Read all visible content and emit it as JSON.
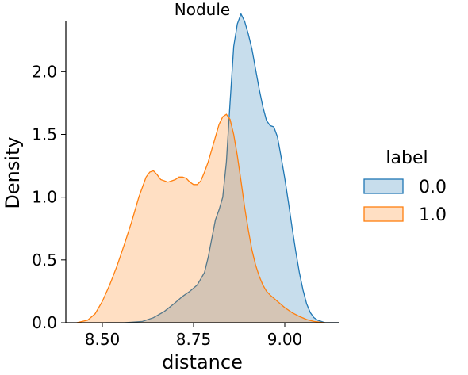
{
  "chart_data": {
    "type": "area",
    "title": "Nodule",
    "xlabel": "distance",
    "ylabel": "Density",
    "xlim": [
      8.4,
      9.15
    ],
    "ylim": [
      0,
      2.4
    ],
    "xticks": [
      {
        "value": 8.5,
        "label": "8.50"
      },
      {
        "value": 8.75,
        "label": "8.75"
      },
      {
        "value": 9.0,
        "label": "9.00"
      }
    ],
    "yticks": [
      {
        "value": 0.0,
        "label": "0.0"
      },
      {
        "value": 0.5,
        "label": "0.5"
      },
      {
        "value": 1.0,
        "label": "1.0"
      },
      {
        "value": 1.5,
        "label": "1.5"
      },
      {
        "value": 2.0,
        "label": "2.0"
      }
    ],
    "grid": false,
    "legend": {
      "title": "label",
      "placement": "right"
    },
    "series": [
      {
        "name": "0.0",
        "stroke": "#1f77b4",
        "fill": "#1f77b4",
        "x": [
          8.51,
          8.56,
          8.61,
          8.64,
          8.67,
          8.7,
          8.72,
          8.74,
          8.76,
          8.78,
          8.79,
          8.8,
          8.81,
          8.82,
          8.83,
          8.84,
          8.85,
          8.86,
          8.87,
          8.88,
          8.89,
          8.9,
          8.91,
          8.92,
          8.93,
          8.94,
          8.95,
          8.96,
          8.97,
          8.98,
          8.99,
          9.0,
          9.01,
          9.02,
          9.03,
          9.04,
          9.05,
          9.06,
          9.07,
          9.08,
          9.09,
          9.1,
          9.11,
          9.12,
          9.13,
          9.15
        ],
        "y": [
          0.0,
          0.0,
          0.01,
          0.04,
          0.09,
          0.16,
          0.21,
          0.25,
          0.3,
          0.4,
          0.52,
          0.67,
          0.82,
          0.9,
          1.0,
          1.28,
          1.75,
          2.2,
          2.38,
          2.46,
          2.4,
          2.3,
          2.18,
          2.02,
          1.86,
          1.72,
          1.61,
          1.57,
          1.56,
          1.48,
          1.32,
          1.15,
          0.96,
          0.76,
          0.57,
          0.4,
          0.26,
          0.15,
          0.08,
          0.04,
          0.02,
          0.01,
          0.0,
          0.0,
          0.0,
          0.0
        ]
      },
      {
        "name": "1.0",
        "stroke": "#ff7f0e",
        "fill": "#ff7f0e",
        "x": [
          8.43,
          8.46,
          8.48,
          8.5,
          8.52,
          8.54,
          8.56,
          8.58,
          8.6,
          8.61,
          8.62,
          8.63,
          8.64,
          8.65,
          8.66,
          8.68,
          8.7,
          8.71,
          8.72,
          8.73,
          8.74,
          8.75,
          8.76,
          8.77,
          8.78,
          8.79,
          8.8,
          8.81,
          8.82,
          8.83,
          8.84,
          8.85,
          8.86,
          8.87,
          8.88,
          8.89,
          8.9,
          8.91,
          8.92,
          8.93,
          8.94,
          8.95,
          8.96,
          8.98,
          9.0,
          9.02,
          9.04,
          9.06,
          9.08,
          9.11
        ],
        "y": [
          0.0,
          0.02,
          0.07,
          0.17,
          0.3,
          0.45,
          0.62,
          0.8,
          1.0,
          1.08,
          1.16,
          1.2,
          1.21,
          1.18,
          1.14,
          1.12,
          1.14,
          1.16,
          1.16,
          1.15,
          1.12,
          1.1,
          1.1,
          1.13,
          1.2,
          1.28,
          1.38,
          1.48,
          1.58,
          1.64,
          1.66,
          1.62,
          1.5,
          1.33,
          1.13,
          0.92,
          0.74,
          0.58,
          0.46,
          0.37,
          0.3,
          0.25,
          0.22,
          0.17,
          0.12,
          0.08,
          0.05,
          0.025,
          0.01,
          0.0
        ]
      }
    ]
  }
}
